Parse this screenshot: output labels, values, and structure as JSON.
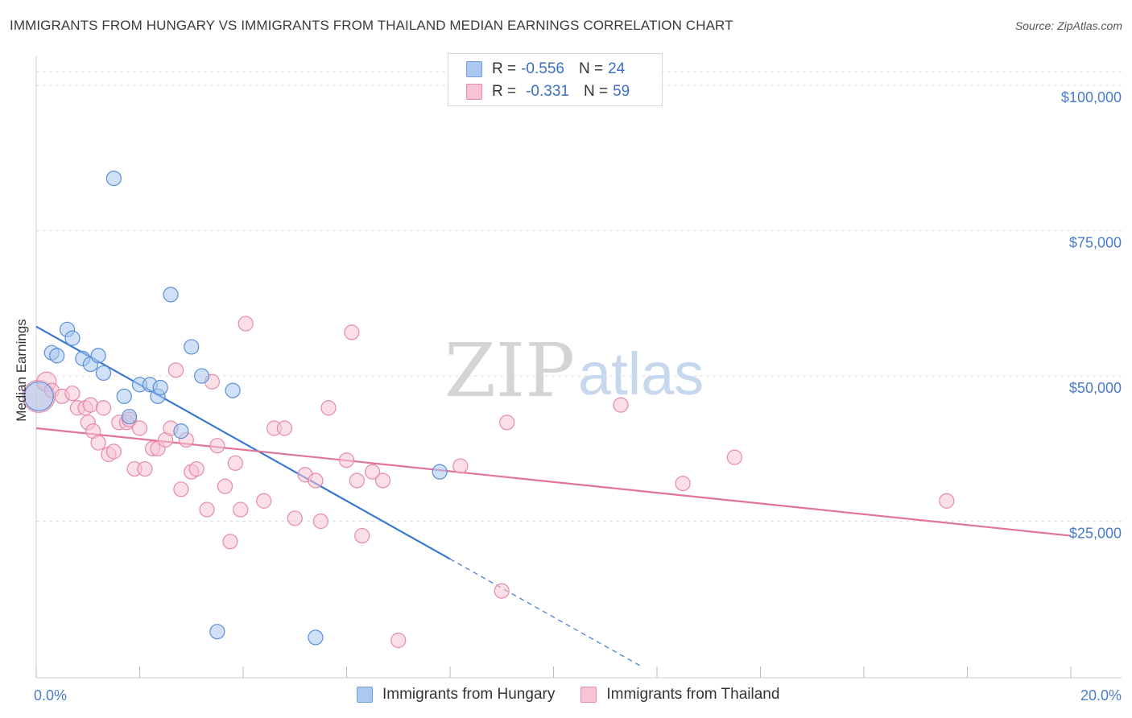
{
  "header": {
    "title": "IMMIGRANTS FROM HUNGARY VS IMMIGRANTS FROM THAILAND MEDIAN EARNINGS CORRELATION CHART",
    "source": "Source: ZipAtlas.com"
  },
  "watermark": {
    "zip": "ZIP",
    "atlas": "atlas"
  },
  "legend": {
    "rows": [
      {
        "r_label": "R =",
        "r_value": "-0.556",
        "n_label": "N =",
        "n_value": "24",
        "color": "#aac8f0",
        "border": "#6f9fdd"
      },
      {
        "r_label": "R =",
        "r_value": "-0.331",
        "n_label": "N =",
        "n_value": "59",
        "color": "#f8c4d4",
        "border": "#e58aa8"
      }
    ]
  },
  "bottom_legend": {
    "items": [
      {
        "label": "Immigrants from Hungary",
        "color": "#aac8f0",
        "border": "#6f9fdd"
      },
      {
        "label": "Immigrants from Thailand",
        "color": "#f8c4d4",
        "border": "#e58aa8"
      }
    ]
  },
  "chart_data": {
    "type": "scatter",
    "title": "IMMIGRANTS FROM HUNGARY VS IMMIGRANTS FROM THAILAND MEDIAN EARNINGS CORRELATION CHART",
    "xlabel": "",
    "ylabel": "Median Earnings",
    "xlim": [
      0,
      20
    ],
    "ylim": [
      0,
      105000
    ],
    "x_tick_labels": {
      "left": "0.0%",
      "right": "20.0%"
    },
    "y_ticks": [
      {
        "value": 25000,
        "label": "$25,000"
      },
      {
        "value": 50000,
        "label": "$50,000"
      },
      {
        "value": 75000,
        "label": "$75,000"
      },
      {
        "value": 100000,
        "label": "$100,000"
      }
    ],
    "grid": true,
    "series": [
      {
        "name": "Immigrants from Hungary",
        "color": "#aac8f0",
        "stroke": "#5b8fd6",
        "line_color": "#3a78d4",
        "trend": {
          "x0": 0,
          "y0": 58500,
          "x_solid_end": 8.0,
          "x_dash_end": 11.7
        },
        "points": [
          [
            0.05,
            46500,
            18
          ],
          [
            0.3,
            54000,
            9
          ],
          [
            0.4,
            53500,
            9
          ],
          [
            0.6,
            58000,
            9
          ],
          [
            0.7,
            56500,
            9
          ],
          [
            0.9,
            53000,
            9
          ],
          [
            1.05,
            52000,
            9
          ],
          [
            1.2,
            53500,
            9
          ],
          [
            1.3,
            50500,
            9
          ],
          [
            1.5,
            84000,
            9
          ],
          [
            1.7,
            46500,
            9
          ],
          [
            1.8,
            43000,
            9
          ],
          [
            2.0,
            48500,
            9
          ],
          [
            2.2,
            48500,
            9
          ],
          [
            2.35,
            46500,
            9
          ],
          [
            2.4,
            48000,
            9
          ],
          [
            2.6,
            64000,
            9
          ],
          [
            2.8,
            40500,
            9
          ],
          [
            3.0,
            55000,
            9
          ],
          [
            3.2,
            50000,
            9
          ],
          [
            3.5,
            6000,
            9
          ],
          [
            3.8,
            47500,
            9
          ],
          [
            5.4,
            5000,
            9
          ],
          [
            7.8,
            33500,
            9
          ]
        ]
      },
      {
        "name": "Immigrants from Thailand",
        "color": "#f8c4d4",
        "stroke": "#e58aa8",
        "line_color": "#e0749a",
        "trend": {
          "x0": 0,
          "y0": 41000,
          "x1": 20,
          "y1": 22500
        },
        "points": [
          [
            0.05,
            46500,
            20
          ],
          [
            0.2,
            49000,
            12
          ],
          [
            0.3,
            47500,
            9
          ],
          [
            0.5,
            46500,
            9
          ],
          [
            0.7,
            47000,
            9
          ],
          [
            0.8,
            44500,
            9
          ],
          [
            0.95,
            44500,
            9
          ],
          [
            1.0,
            42000,
            9
          ],
          [
            1.05,
            45000,
            9
          ],
          [
            1.1,
            40500,
            9
          ],
          [
            1.2,
            38500,
            9
          ],
          [
            1.3,
            44500,
            9
          ],
          [
            1.4,
            36500,
            9
          ],
          [
            1.5,
            37000,
            9
          ],
          [
            1.6,
            42000,
            9
          ],
          [
            1.75,
            42000,
            9
          ],
          [
            1.8,
            42500,
            9
          ],
          [
            1.9,
            34000,
            9
          ],
          [
            2.0,
            41000,
            9
          ],
          [
            2.1,
            34000,
            9
          ],
          [
            2.25,
            37500,
            9
          ],
          [
            2.35,
            37500,
            9
          ],
          [
            2.5,
            39000,
            9
          ],
          [
            2.6,
            41000,
            9
          ],
          [
            2.7,
            51000,
            9
          ],
          [
            2.8,
            30500,
            9
          ],
          [
            2.9,
            39000,
            9
          ],
          [
            3.0,
            33500,
            9
          ],
          [
            3.1,
            34000,
            9
          ],
          [
            3.3,
            27000,
            9
          ],
          [
            3.4,
            49000,
            9
          ],
          [
            3.5,
            38000,
            9
          ],
          [
            3.65,
            31000,
            9
          ],
          [
            3.75,
            21500,
            9
          ],
          [
            3.85,
            35000,
            9
          ],
          [
            3.95,
            27000,
            9
          ],
          [
            4.05,
            59000,
            9
          ],
          [
            4.4,
            28500,
            9
          ],
          [
            4.6,
            41000,
            9
          ],
          [
            4.8,
            41000,
            9
          ],
          [
            5.0,
            25500,
            9
          ],
          [
            5.2,
            33000,
            9
          ],
          [
            5.4,
            32000,
            9
          ],
          [
            5.5,
            25000,
            9
          ],
          [
            5.65,
            44500,
            9
          ],
          [
            6.0,
            35500,
            9
          ],
          [
            6.1,
            57500,
            9
          ],
          [
            6.2,
            32000,
            9
          ],
          [
            6.3,
            22500,
            9
          ],
          [
            6.5,
            33500,
            9
          ],
          [
            6.7,
            32000,
            9
          ],
          [
            7.0,
            4500,
            9
          ],
          [
            8.2,
            34500,
            9
          ],
          [
            9.0,
            13000,
            9
          ],
          [
            9.1,
            42000,
            9
          ],
          [
            11.3,
            45000,
            9
          ],
          [
            12.5,
            31500,
            9
          ],
          [
            13.5,
            36000,
            9
          ],
          [
            17.6,
            28500,
            9
          ]
        ]
      }
    ]
  }
}
